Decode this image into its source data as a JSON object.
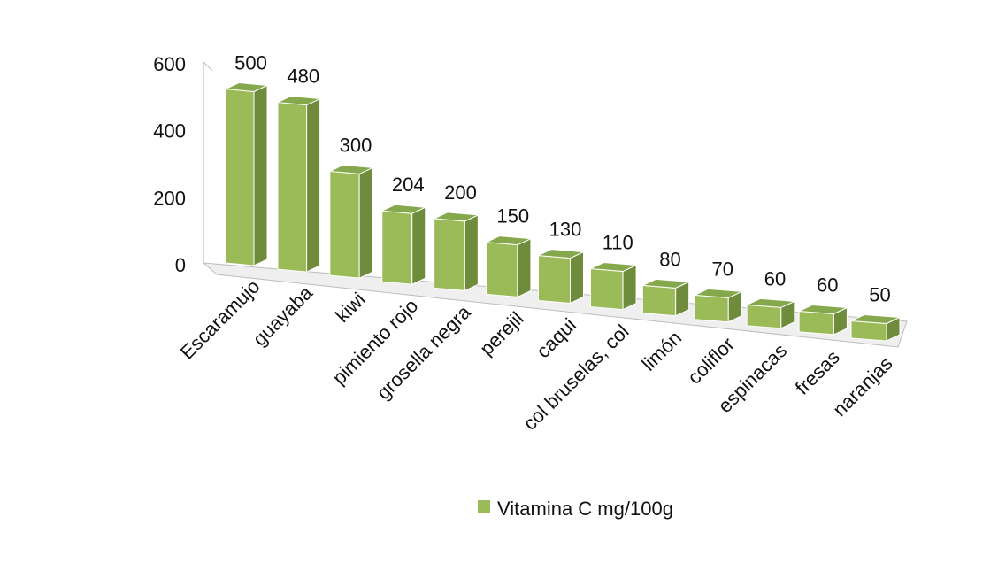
{
  "chart_data": {
    "type": "bar",
    "categories": [
      "Escaramujo",
      "guayaba",
      "kiwi",
      "pimiento rojo",
      "grosella negra",
      "perejil",
      "caqui",
      "col bruselas, col",
      "limón",
      "coliflor",
      "espinacas",
      "fresas",
      "naranjas"
    ],
    "series": [
      {
        "name": "Vitamina C mg/100g",
        "values": [
          500,
          480,
          300,
          204,
          200,
          150,
          130,
          110,
          80,
          70,
          60,
          60,
          50
        ]
      }
    ],
    "yticks": [
      0,
      200,
      400,
      600
    ],
    "ylim": [
      0,
      600
    ],
    "legend_position": "bottom",
    "colors": {
      "front": "#9bbb59",
      "side": "#6f8b3c",
      "top": "#86a84c",
      "floor": "#efefef",
      "wall_line": "#bdbdbd"
    },
    "style": "3d-perspective"
  }
}
